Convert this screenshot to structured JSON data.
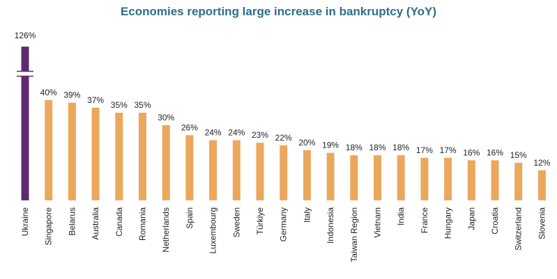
{
  "colors": {
    "title": "#2e6e86",
    "highlight": "#5e2b6e",
    "bar": "#eba75c"
  },
  "chart_data": {
    "type": "bar",
    "title": "Economies reporting large increase in bankruptcy (YoY)",
    "xlabel": "",
    "ylabel": "",
    "ylim": [
      0,
      42
    ],
    "axis_break": true,
    "categories": [
      "Ukraine",
      "Singapore",
      "Belarus",
      "Australia",
      "Canada",
      "Romania",
      "Netherlands",
      "Spain",
      "Luxembourg",
      "Sweden",
      "Türkiye",
      "Germany",
      "Italy",
      "Indonesia",
      "Taiwan Region",
      "Vietnam",
      "India",
      "France",
      "Hungary",
      "Japan",
      "Croatia",
      "Switzerland",
      "Slovenia"
    ],
    "values": [
      126,
      40,
      39,
      37,
      35,
      35,
      30,
      26,
      24,
      24,
      23,
      22,
      20,
      19,
      18,
      18,
      18,
      17,
      17,
      16,
      16,
      15,
      12
    ],
    "labels": [
      "126%",
      "40%",
      "39%",
      "37%",
      "35%",
      "35%",
      "30%",
      "26%",
      "24%",
      "24%",
      "23%",
      "22%",
      "20%",
      "19%",
      "18%",
      "18%",
      "18%",
      "17%",
      "17%",
      "16%",
      "16%",
      "15%",
      "12%"
    ],
    "highlight_category": "Ukraine"
  }
}
